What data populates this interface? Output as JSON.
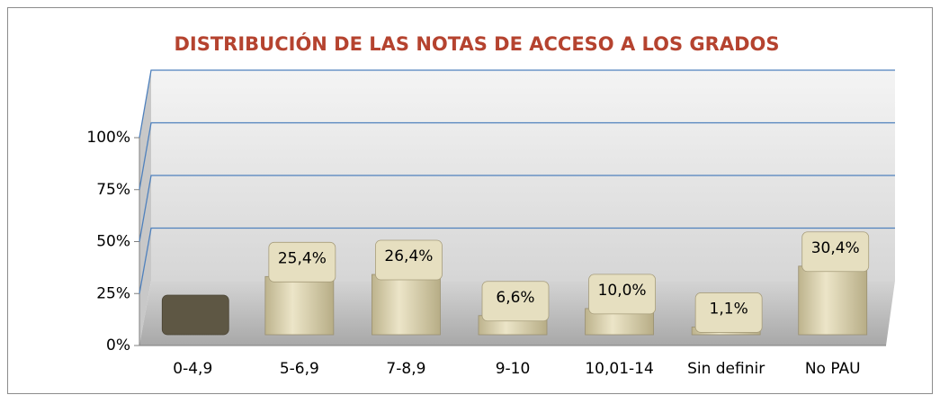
{
  "chart_data": {
    "type": "bar3d",
    "title": "DISTRIBUCIÓN DE LAS NOTAS DE ACCESO A LOS GRADOS",
    "categories": [
      "0-4,9",
      "5-6,9",
      "7-8,9",
      "9-10",
      "10,01-14",
      "Sin definir",
      "No PAU"
    ],
    "values": [
      0,
      25.4,
      26.4,
      6.6,
      10.0,
      1.1,
      30.4
    ],
    "value_labels": [
      null,
      "25,4%",
      "26,4%",
      "6,6%",
      "10,0%",
      "1,1%",
      "30,4%"
    ],
    "color": "#d9d0a9",
    "ylim": [
      0,
      100
    ],
    "yticks": [
      {
        "value": 0,
        "label": "0%"
      },
      {
        "value": 25,
        "label": "25%"
      },
      {
        "value": 50,
        "label": "50%"
      },
      {
        "value": 75,
        "label": "75%"
      },
      {
        "value": 100,
        "label": "100%"
      }
    ],
    "grid": true
  }
}
